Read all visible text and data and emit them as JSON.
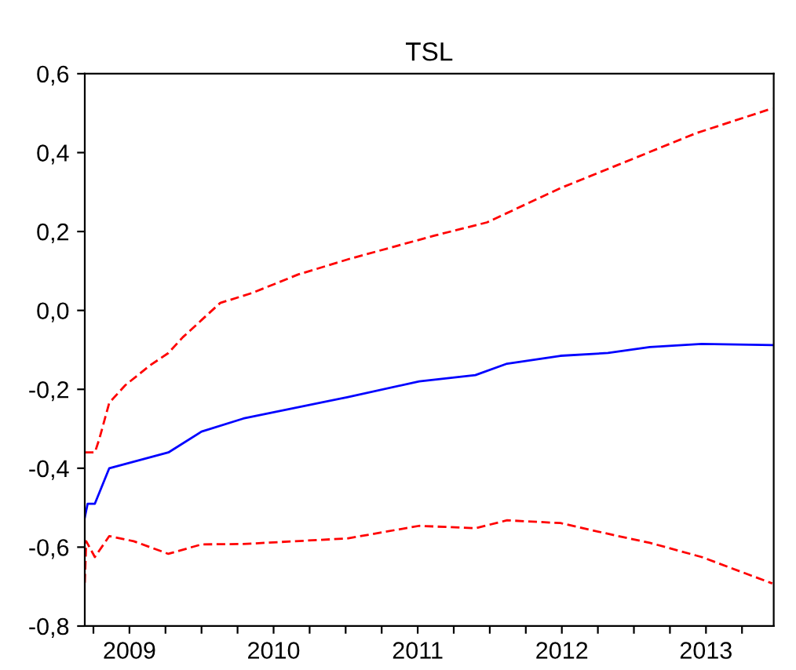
{
  "chart_data": {
    "type": "line",
    "title": "TSL",
    "xlim": [
      2009.19,
      2013.97
    ],
    "xticks": [
      {
        "value": 2009.25,
        "label": null
      },
      {
        "value": 2009.5,
        "label": "2009"
      },
      {
        "value": 2009.75,
        "label": null
      },
      {
        "value": 2010,
        "label": null
      },
      {
        "value": 2010.25,
        "label": null
      },
      {
        "value": 2010.5,
        "label": "2010"
      },
      {
        "value": 2010.75,
        "label": null
      },
      {
        "value": 2011,
        "label": null
      },
      {
        "value": 2011.25,
        "label": null
      },
      {
        "value": 2011.5,
        "label": "2011"
      },
      {
        "value": 2011.75,
        "label": null
      },
      {
        "value": 2012,
        "label": null
      },
      {
        "value": 2012.25,
        "label": null
      },
      {
        "value": 2012.5,
        "label": "2012"
      },
      {
        "value": 2012.75,
        "label": null
      },
      {
        "value": 2013,
        "label": null
      },
      {
        "value": 2013.25,
        "label": null
      },
      {
        "value": 2013.5,
        "label": "2013"
      },
      {
        "value": 2013.75,
        "label": null
      }
    ],
    "ylim": [
      -0.8,
      0.6
    ],
    "yticks": [
      {
        "value": -0.8,
        "label": "-0,8"
      },
      {
        "value": -0.6,
        "label": "-0,6"
      },
      {
        "value": -0.4,
        "label": "-0,4"
      },
      {
        "value": -0.2,
        "label": "-0,2"
      },
      {
        "value": 0.0,
        "label": "0,0"
      },
      {
        "value": 0.2,
        "label": "0,2"
      },
      {
        "value": 0.4,
        "label": "0,4"
      },
      {
        "value": 0.6,
        "label": "0,6"
      }
    ],
    "grid": false,
    "legend": false,
    "series": [
      {
        "color": "#0000ff",
        "line_style": "solid",
        "x": [
          2009.19,
          2009.21,
          2009.26,
          2009.36,
          2009.77,
          2010.0,
          2010.29,
          2011.01,
          2011.51,
          2011.9,
          2012.12,
          2012.49,
          2012.82,
          2013.11,
          2013.47,
          2013.96
        ],
        "values": [
          -0.525,
          -0.49,
          -0.49,
          -0.4,
          -0.36,
          -0.307,
          -0.274,
          -0.22,
          -0.18,
          -0.164,
          -0.135,
          -0.115,
          -0.108,
          -0.093,
          -0.085,
          -0.088
        ]
      },
      {
        "color": "#ff0000",
        "line_style": "dashed",
        "x": [
          2009.19,
          2009.26,
          2009.29,
          2009.36,
          2009.47,
          2009.64,
          2009.77,
          2009.87,
          2010.13,
          2010.35,
          2010.67,
          2011.03,
          2011.62,
          2011.98,
          2012.49,
          2012.89,
          2013.43,
          2013.96
        ],
        "values": [
          -0.36,
          -0.36,
          -0.327,
          -0.234,
          -0.19,
          -0.14,
          -0.108,
          -0.068,
          0.019,
          0.044,
          0.091,
          0.131,
          0.19,
          0.223,
          0.31,
          0.369,
          0.449,
          0.512
        ]
      },
      {
        "color": "#ff0000",
        "line_style": "dashed",
        "x": [
          2009.19,
          2009.2,
          2009.26,
          2009.36,
          2009.53,
          2009.77,
          2010.0,
          2010.29,
          2011.01,
          2011.51,
          2011.9,
          2012.12,
          2012.49,
          2012.89,
          2013.11,
          2013.47,
          2013.96
        ],
        "values": [
          -0.69,
          -0.585,
          -0.625,
          -0.572,
          -0.585,
          -0.617,
          -0.593,
          -0.592,
          -0.578,
          -0.546,
          -0.552,
          -0.532,
          -0.539,
          -0.572,
          -0.589,
          -0.625,
          -0.692
        ]
      }
    ]
  }
}
